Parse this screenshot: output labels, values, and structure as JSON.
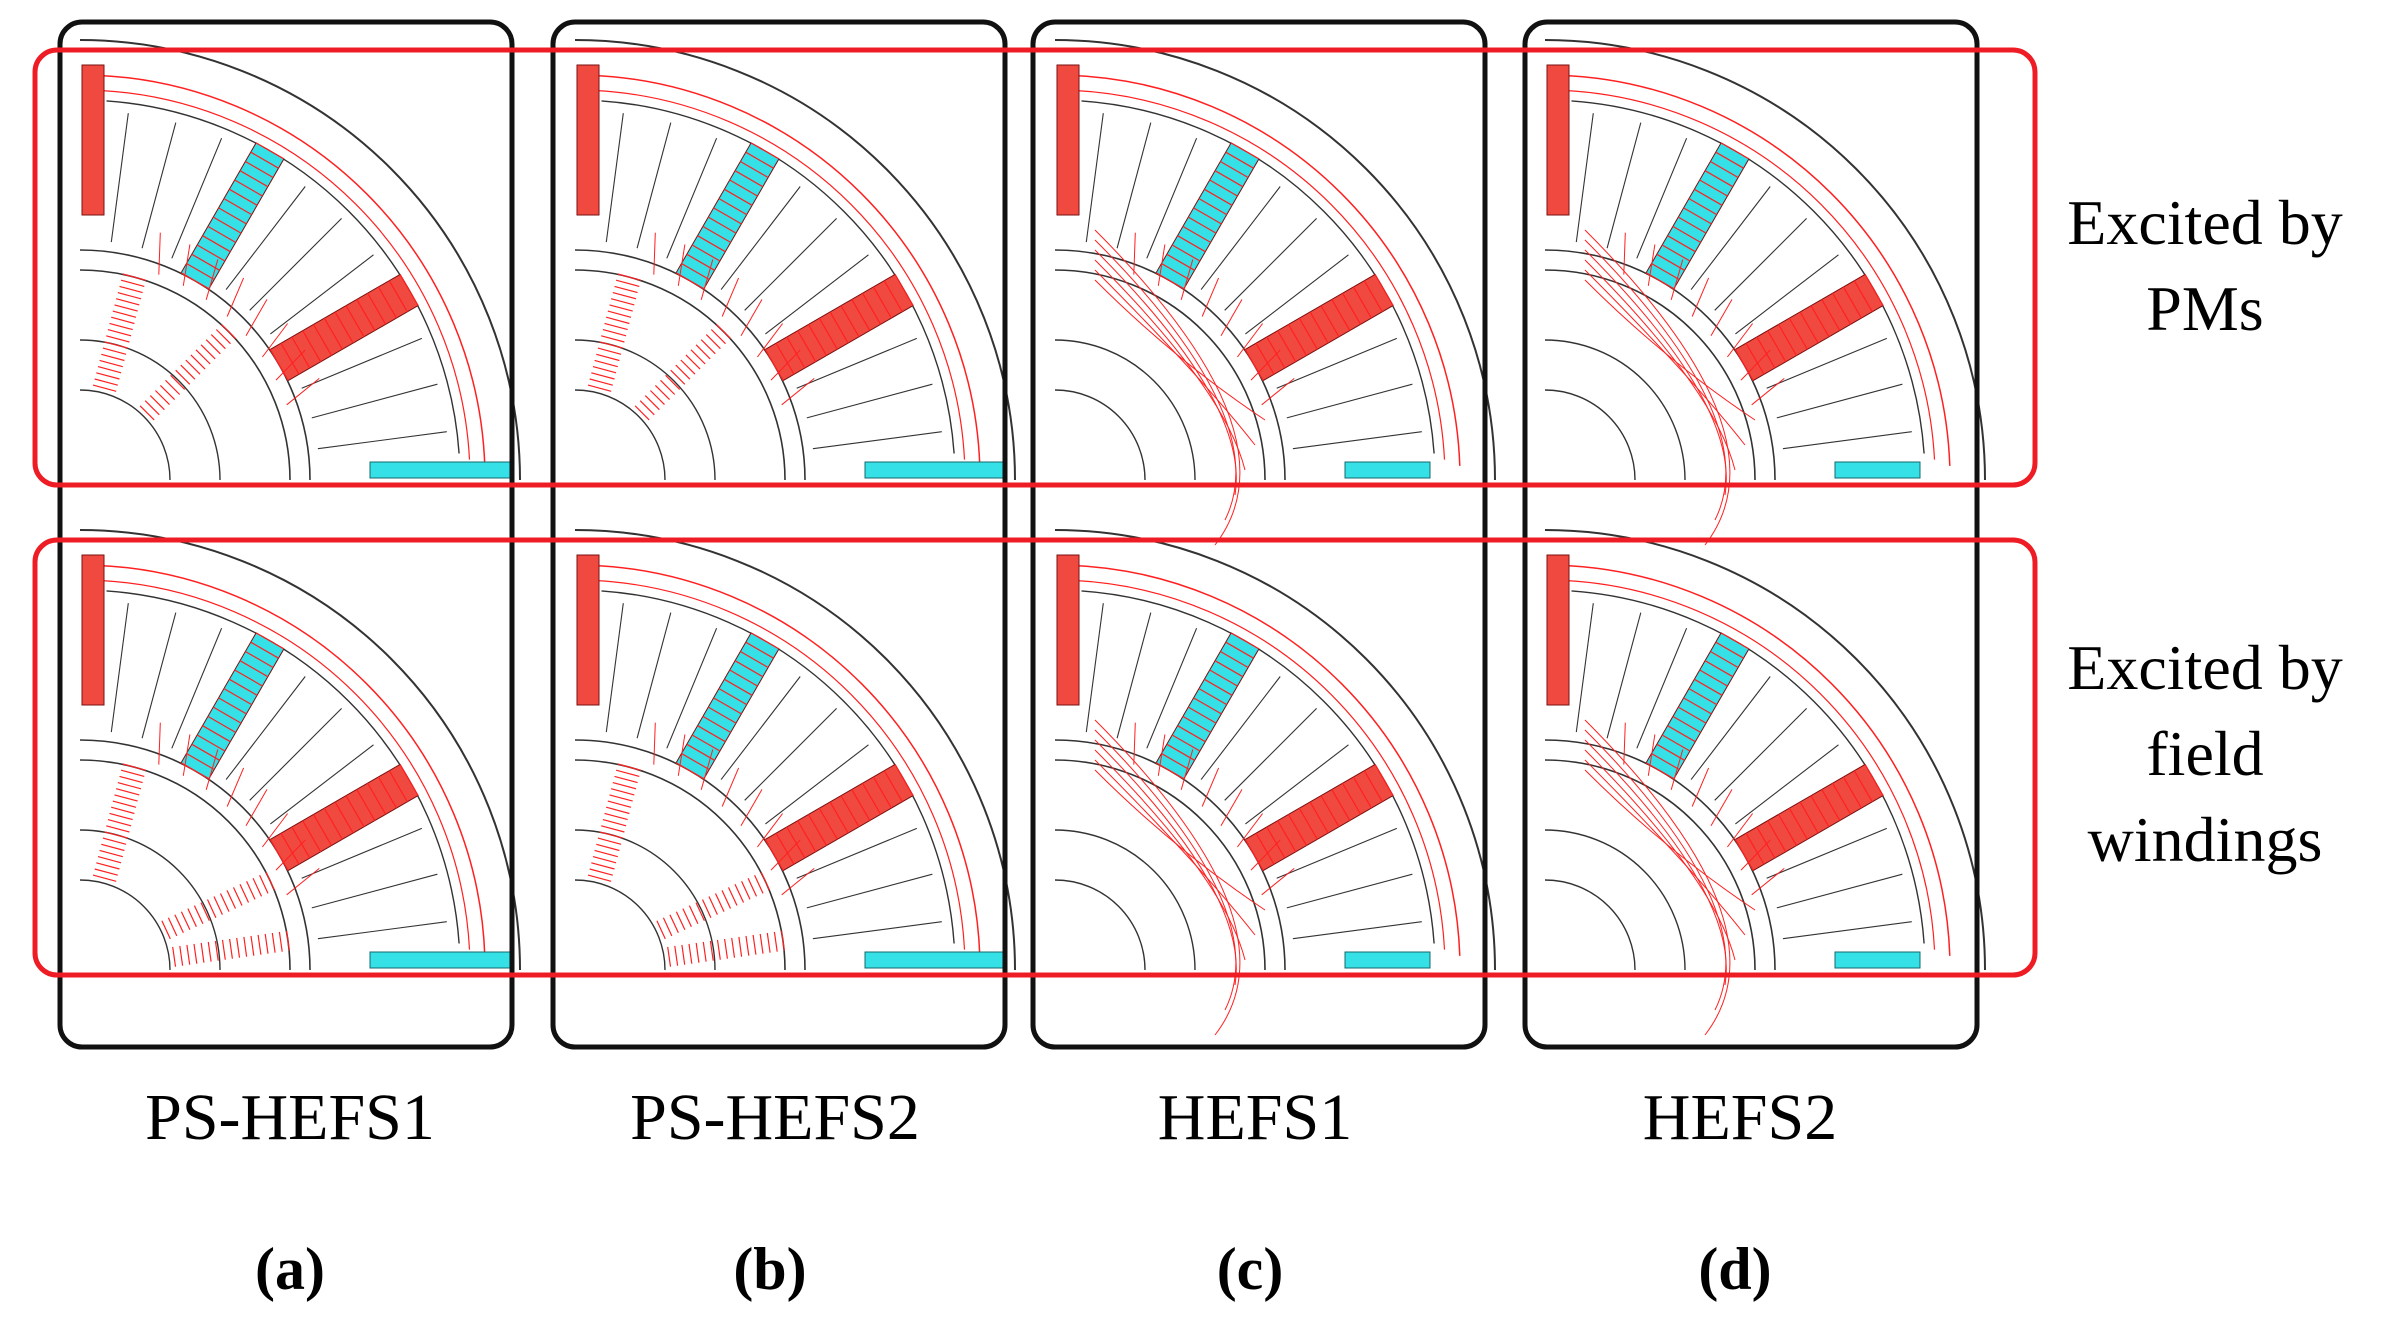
{
  "figure": {
    "row_labels": [
      {
        "id": "pm",
        "lines": [
          "Excited by",
          "PMs"
        ]
      },
      {
        "id": "field",
        "lines": [
          "Excited by",
          "field",
          "windings"
        ]
      }
    ],
    "columns": [
      {
        "name": "PS-HEFS1",
        "tag": "(a)",
        "has_pm_on_rotor": true,
        "full_rotor_coupling": true
      },
      {
        "name": "PS-HEFS2",
        "tag": "(b)",
        "has_pm_on_rotor": true,
        "full_rotor_coupling": true
      },
      {
        "name": "HEFS1",
        "tag": "(c)",
        "has_pm_on_rotor": false,
        "full_rotor_coupling": false
      },
      {
        "name": "HEFS2",
        "tag": "(d)",
        "has_pm_on_rotor": false,
        "full_rotor_coupling": false
      }
    ],
    "colors": {
      "flux": "#ff2020",
      "magnet": "#35e0e6",
      "winding": "#f04a40",
      "row_frame": "#ee1c24",
      "column_frame": "#111111",
      "machine_outline": "#333333"
    },
    "icons": {
      "machine": "quarter-machine-cross-section-icon"
    }
  }
}
